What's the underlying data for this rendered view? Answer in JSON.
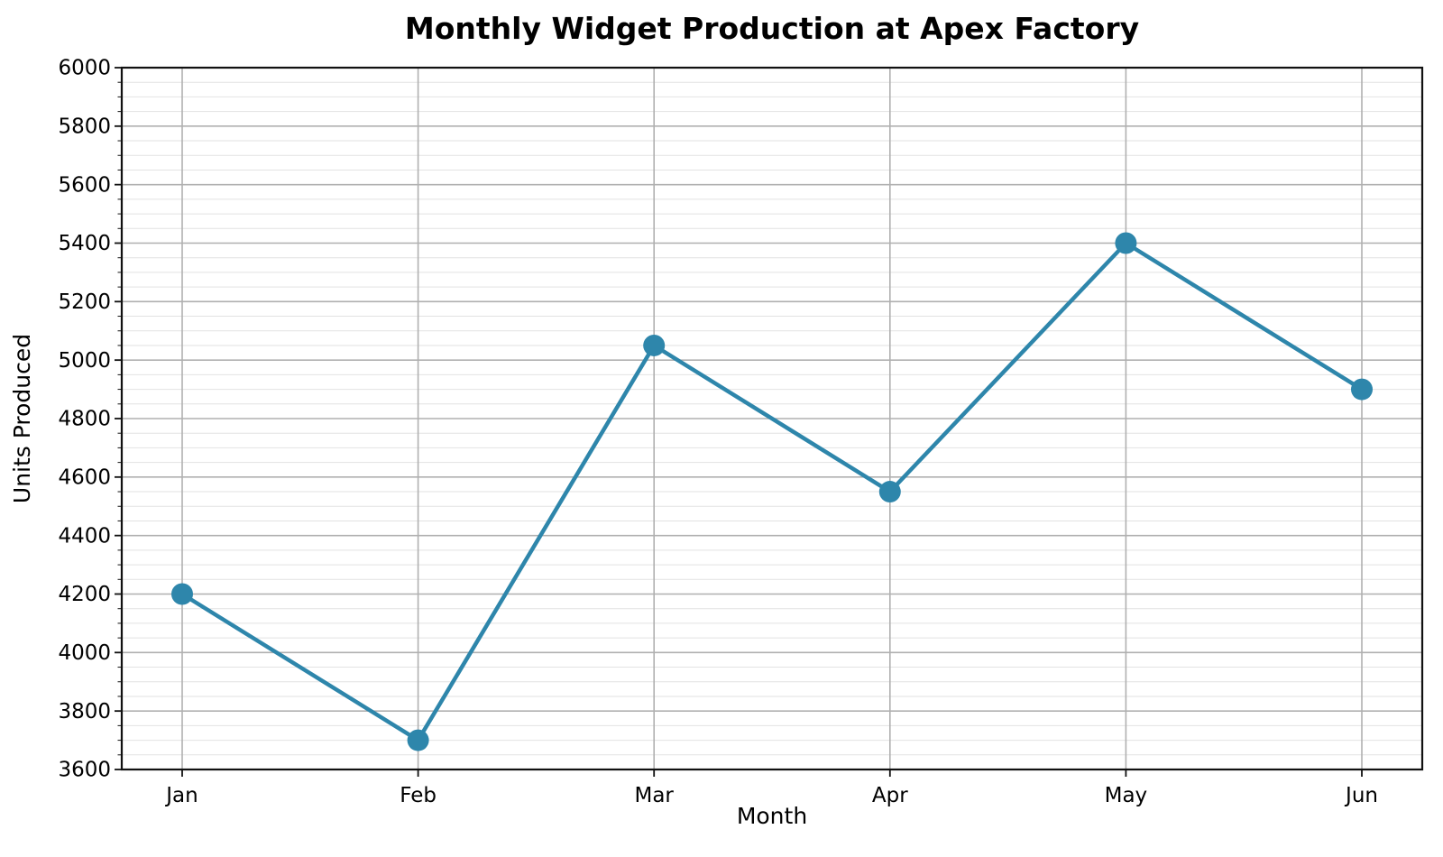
{
  "chart_data": {
    "type": "line",
    "title": "Monthly Widget Production at Apex Factory",
    "xlabel": "Month",
    "ylabel": "Units Produced",
    "categories": [
      "Jan",
      "Feb",
      "Mar",
      "Apr",
      "May",
      "Jun"
    ],
    "series": [
      {
        "name": "Units Produced",
        "values": [
          4200,
          3700,
          5050,
          4550,
          5400,
          4900
        ]
      }
    ],
    "ylim": [
      3600,
      6000
    ],
    "yticks": [
      3600,
      3800,
      4000,
      4200,
      4400,
      4600,
      4800,
      5000,
      5200,
      5400,
      5600,
      5800,
      6000
    ],
    "ytick_minor_step": 50,
    "legend_position": "none",
    "grid": "horizontal major+minor, vertical major",
    "line_color": "#2e86ab",
    "marker_style": "filled-circle",
    "grid_major_color": "#b0b0b0",
    "grid_minor_color": "#e2e2e2",
    "axis_color": "#111111",
    "text_color": "#000000",
    "background_color": "#ffffff"
  }
}
